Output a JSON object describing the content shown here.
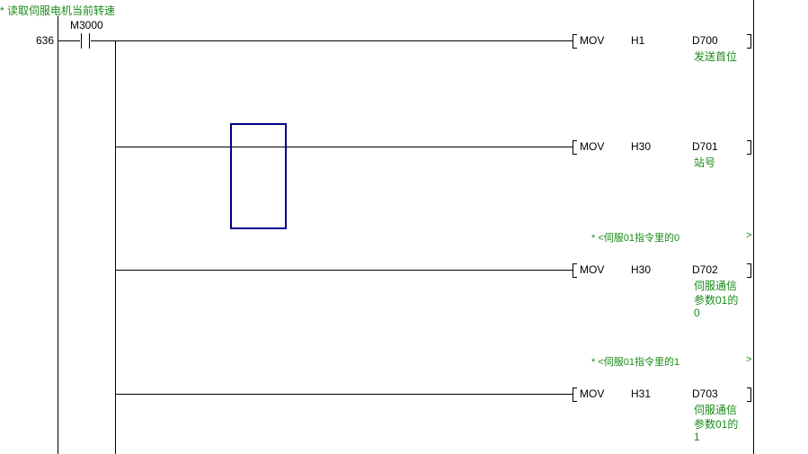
{
  "rung": {
    "comment": "* 读取伺服电机当前转速",
    "step": "636",
    "contact": "M3000"
  },
  "instructions": [
    {
      "op": "MOV",
      "src": "H1",
      "dst": "D700",
      "dst_comment": [
        "发送首位"
      ],
      "note": ""
    },
    {
      "op": "MOV",
      "src": "H30",
      "dst": "D701",
      "dst_comment": [
        "站号"
      ],
      "note": ""
    },
    {
      "op": "MOV",
      "src": "H30",
      "dst": "D702",
      "dst_comment": [
        "伺服通信",
        "参数01的",
        "0"
      ],
      "note": "* <伺服01指令里的0",
      "note_end": ">"
    },
    {
      "op": "MOV",
      "src": "H31",
      "dst": "D703",
      "dst_comment": [
        "伺服通信",
        "参数01的",
        "1"
      ],
      "note": "* <伺服01指令里的1",
      "note_end": ">"
    }
  ],
  "colors": {
    "comment": "#1a8a1a",
    "cursor": "#00008b"
  }
}
